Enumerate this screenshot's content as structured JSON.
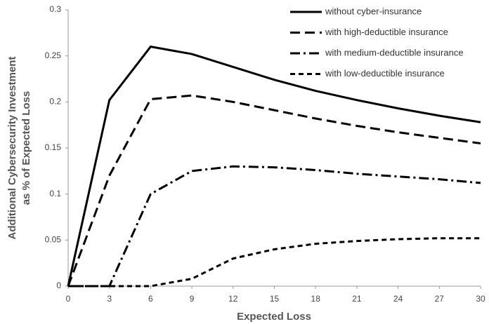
{
  "chart_data": {
    "type": "line",
    "xlabel": "Expected Loss",
    "ylabel": [
      "Additional Cybersecurity Investment",
      "as % of Expected Loss"
    ],
    "x": [
      0,
      3,
      6,
      9,
      12,
      15,
      18,
      21,
      24,
      27,
      30
    ],
    "series": [
      {
        "name": "without cyber-insurance",
        "color": "#000000",
        "values": [
          0,
          0.202,
          0.26,
          0.252,
          0.238,
          0.224,
          0.212,
          0.202,
          0.193,
          0.185,
          0.178
        ]
      },
      {
        "name": "with high-deductible insurance",
        "color": "#000000",
        "values": [
          0,
          0.12,
          0.203,
          0.207,
          0.2,
          0.191,
          0.182,
          0.174,
          0.167,
          0.161,
          0.155
        ]
      },
      {
        "name": "with medium-deductible insurance",
        "color": "#000000",
        "values": [
          0,
          0,
          0.1,
          0.125,
          0.13,
          0.129,
          0.126,
          0.122,
          0.119,
          0.116,
          0.112
        ]
      },
      {
        "name": "with low-deductible insurance",
        "color": "#000000",
        "values": [
          0,
          0,
          0,
          0.008,
          0.03,
          0.04,
          0.046,
          0.049,
          0.051,
          0.052,
          0.052
        ]
      }
    ],
    "xlim": [
      0,
      30
    ],
    "xticks": [
      0,
      3,
      6,
      9,
      12,
      15,
      18,
      21,
      24,
      27,
      30
    ],
    "ylim": [
      0,
      0.3
    ],
    "yticks": [
      0,
      0.05,
      0.1,
      0.15,
      0.2,
      0.25,
      0.3
    ],
    "grid": false,
    "legend": "top-right"
  }
}
